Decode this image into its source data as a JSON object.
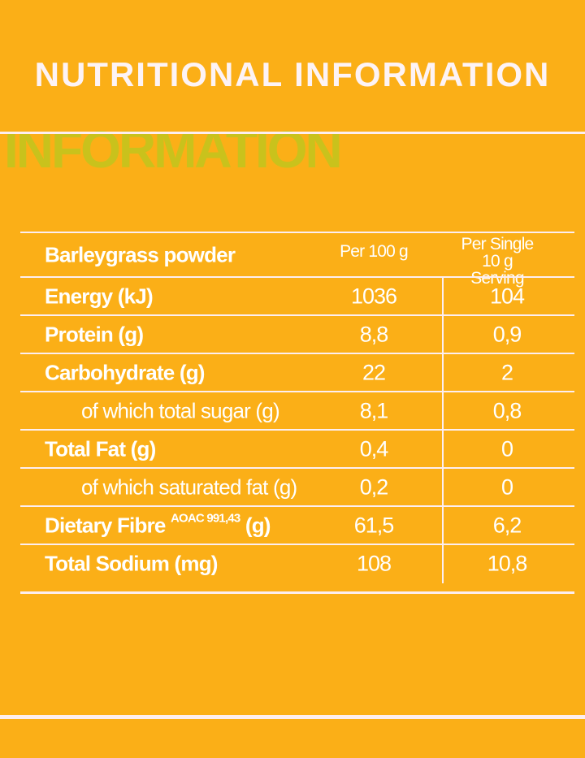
{
  "title": "NUTRITIONAL INFORMATION",
  "ghost_text": "INFORMATION",
  "background_color": "#fbaf17",
  "table": {
    "header": {
      "product": "Barleygrass powder",
      "col1": "Per 100 g",
      "col2_line1": "Per Single",
      "col2_line2": "10 g Serving"
    },
    "rows": [
      {
        "label": "Energy (kJ)",
        "per100": "1036",
        "serving": "104",
        "sub": false
      },
      {
        "label": "Protein (g)",
        "per100": "8,8",
        "serving": "0,9",
        "sub": false
      },
      {
        "label": "Carbohydrate (g)",
        "per100": "22",
        "serving": "2",
        "sub": false
      },
      {
        "label": "of which total sugar (g)",
        "per100": "8,1",
        "serving": "0,8",
        "sub": true
      },
      {
        "label": "Total Fat (g)",
        "per100": "0,4",
        "serving": "0",
        "sub": false
      },
      {
        "label": "of which saturated fat (g)",
        "per100": "0,2",
        "serving": "0",
        "sub": true
      },
      {
        "label": "Dietary Fibre",
        "label_sup": "AOAC 991,43",
        "label_suffix": "(g)",
        "per100": "61,5",
        "serving": "6,2",
        "sub": false
      },
      {
        "label": "Total Sodium (mg)",
        "per100": "108",
        "serving": "10,8",
        "sub": false
      }
    ]
  }
}
